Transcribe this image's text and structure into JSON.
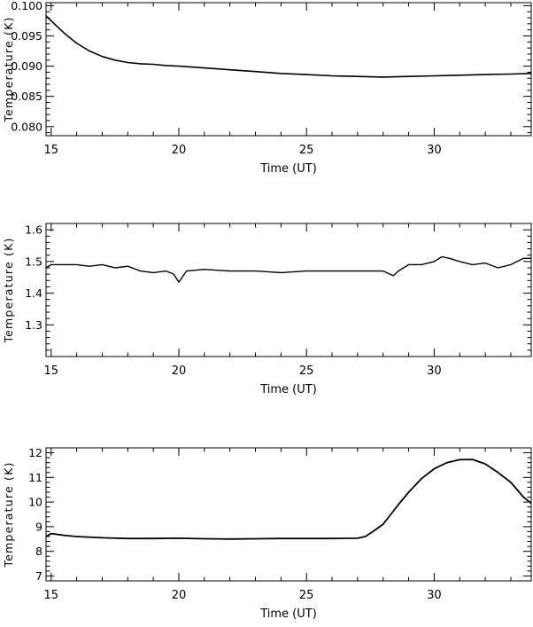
{
  "chart_data": [
    {
      "type": "line",
      "xlabel": "Time (UT)",
      "ylabel": "Temperature  (K)",
      "xlim": [
        14.8,
        33.8
      ],
      "ylim": [
        0.0785,
        0.1005
      ],
      "xticks": [
        "15",
        "20",
        "25",
        "30"
      ],
      "yticks": [
        "0.080",
        "0.085",
        "0.090",
        "0.095",
        "0.100"
      ],
      "series": [
        {
          "x": [
            14.8,
            15.0,
            15.5,
            16.0,
            16.5,
            17.0,
            17.5,
            18.0,
            18.5,
            19.0,
            19.5,
            20.0,
            21.0,
            22.0,
            23.0,
            24.0,
            25.0,
            26.0,
            27.0,
            28.0,
            29.0,
            30.0,
            31.0,
            32.0,
            33.0,
            33.8
          ],
          "y": [
            0.0983,
            0.0975,
            0.0955,
            0.0938,
            0.0925,
            0.0916,
            0.091,
            0.0906,
            0.0904,
            0.0903,
            0.0901,
            0.09,
            0.0897,
            0.0894,
            0.0891,
            0.0888,
            0.0886,
            0.0884,
            0.0883,
            0.0882,
            0.0883,
            0.0884,
            0.0885,
            0.0886,
            0.0887,
            0.0888
          ]
        }
      ]
    },
    {
      "type": "line",
      "xlabel": "Time (UT)",
      "ylabel": "Temperature  (K)",
      "xlim": [
        14.8,
        33.8
      ],
      "ylim": [
        1.2,
        1.62
      ],
      "xticks": [
        "15",
        "20",
        "25",
        "30"
      ],
      "yticks": [
        "1.3",
        "1.4",
        "1.5",
        "1.6"
      ],
      "series": [
        {
          "x": [
            14.8,
            15.0,
            15.5,
            16.0,
            16.5,
            17.0,
            17.5,
            18.0,
            18.5,
            19.0,
            19.5,
            19.8,
            20.0,
            20.3,
            21.0,
            22.0,
            23.0,
            24.0,
            25.0,
            26.0,
            27.0,
            28.0,
            28.4,
            28.6,
            29.0,
            29.5,
            30.0,
            30.3,
            30.6,
            31.0,
            31.5,
            32.0,
            32.5,
            33.0,
            33.5,
            33.8
          ],
          "y": [
            1.48,
            1.49,
            1.49,
            1.49,
            1.485,
            1.49,
            1.48,
            1.485,
            1.47,
            1.465,
            1.47,
            1.46,
            1.435,
            1.47,
            1.475,
            1.47,
            1.47,
            1.465,
            1.47,
            1.47,
            1.47,
            1.47,
            1.455,
            1.47,
            1.49,
            1.49,
            1.5,
            1.515,
            1.51,
            1.5,
            1.49,
            1.495,
            1.48,
            1.49,
            1.51,
            1.51
          ]
        }
      ]
    },
    {
      "type": "line",
      "xlabel": "Time (UT)",
      "ylabel": "Temperature  (K)",
      "xlim": [
        14.8,
        33.8
      ],
      "ylim": [
        6.8,
        12.2
      ],
      "xticks": [
        "15",
        "20",
        "25",
        "30"
      ],
      "yticks": [
        "7",
        "8",
        "9",
        "10",
        "11",
        "12"
      ],
      "series": [
        {
          "x": [
            14.8,
            15.0,
            15.5,
            16.0,
            17.0,
            18.0,
            19.0,
            20.0,
            21.0,
            22.0,
            23.0,
            24.0,
            25.0,
            26.0,
            27.0,
            27.3,
            27.6,
            28.0,
            28.3,
            28.6,
            29.0,
            29.5,
            30.0,
            30.5,
            31.0,
            31.5,
            32.0,
            32.5,
            33.0,
            33.5,
            33.8
          ],
          "y": [
            8.6,
            8.72,
            8.65,
            8.6,
            8.55,
            8.52,
            8.52,
            8.53,
            8.51,
            8.5,
            8.51,
            8.52,
            8.52,
            8.52,
            8.53,
            8.6,
            8.8,
            9.1,
            9.5,
            9.9,
            10.4,
            10.95,
            11.35,
            11.6,
            11.72,
            11.73,
            11.55,
            11.2,
            10.8,
            10.2,
            9.95
          ]
        }
      ]
    }
  ]
}
